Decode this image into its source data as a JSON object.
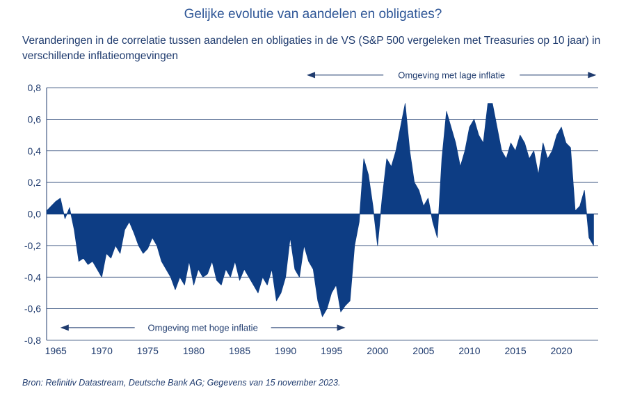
{
  "chart_data": {
    "type": "area",
    "title": "Gelijke evolutie van aandelen en obligaties?",
    "subtitle": "Veranderingen in de correlatie tussen aandelen en obligaties in de VS (S&P 500 vergeleken met Treasuries op 10 jaar) in verschillende inflatieomgevingen",
    "source": "Bron: Refinitiv Datastream, Deutsche Bank AG; Gegevens van 15 november 2023.",
    "xlim": [
      1964,
      2024
    ],
    "ylim": [
      -0.8,
      0.8
    ],
    "x_ticks": [
      1965,
      1970,
      1975,
      1980,
      1985,
      1990,
      1995,
      2000,
      2005,
      2010,
      2015,
      2020
    ],
    "y_ticks": [
      "0,8",
      "0,6",
      "0,4",
      "0,2",
      "0,0",
      "-0,2",
      "-0,4",
      "-0,6",
      "-0,8"
    ],
    "y_tick_values": [
      0.8,
      0.6,
      0.4,
      0.2,
      0.0,
      -0.2,
      -0.4,
      -0.6,
      -0.8
    ],
    "grid": true,
    "fill_color": "#0d3d84",
    "annotations": [
      {
        "text": "Omgeving met hoge inflatie",
        "x_from": 1965.5,
        "x_to": 1996.5,
        "y": -0.72
      },
      {
        "text": "Omgeving met lage inflatie",
        "x_from": 1992.3,
        "x_to": 2023.8,
        "y": 0.88
      }
    ],
    "series": [
      {
        "x": [
          1964.0,
          1964.5,
          1965.0,
          1965.5,
          1966.0,
          1966.5,
          1967.0,
          1967.5,
          1968.0,
          1968.5,
          1969.0,
          1969.5,
          1970.0,
          1970.5,
          1971.0,
          1971.5,
          1972.0,
          1972.5,
          1973.0,
          1973.5,
          1974.0,
          1974.5,
          1975.0,
          1975.5,
          1976.0,
          1976.5,
          1977.0,
          1977.5,
          1978.0,
          1978.5,
          1979.0,
          1979.5,
          1980.0,
          1980.5,
          1981.0,
          1981.5,
          1982.0,
          1982.5,
          1983.0,
          1983.5,
          1984.0,
          1984.5,
          1985.0,
          1985.5,
          1986.0,
          1986.5,
          1987.0,
          1987.5,
          1988.0,
          1988.5,
          1989.0,
          1989.5,
          1990.0,
          1990.5,
          1991.0,
          1991.5,
          1992.0,
          1992.5,
          1993.0,
          1993.5,
          1994.0,
          1994.5,
          1995.0,
          1995.5,
          1996.0,
          1996.5,
          1997.0,
          1997.5,
          1998.0,
          1998.5,
          1999.0,
          1999.5,
          2000.0,
          2000.5,
          2001.0,
          2001.5,
          2002.0,
          2002.5,
          2003.0,
          2003.5,
          2004.0,
          2004.5,
          2005.0,
          2005.5,
          2006.0,
          2006.5,
          2007.0,
          2007.5,
          2008.0,
          2008.5,
          2009.0,
          2009.5,
          2010.0,
          2010.5,
          2011.0,
          2011.5,
          2012.0,
          2012.5,
          2013.0,
          2013.5,
          2014.0,
          2014.5,
          2015.0,
          2015.5,
          2016.0,
          2016.5,
          2017.0,
          2017.5,
          2018.0,
          2018.5,
          2019.0,
          2019.5,
          2020.0,
          2020.5,
          2021.0,
          2021.5,
          2022.0,
          2022.5,
          2023.0,
          2023.5
        ],
        "values": [
          0.02,
          0.05,
          0.08,
          0.1,
          -0.03,
          0.04,
          -0.1,
          -0.3,
          -0.28,
          -0.32,
          -0.3,
          -0.35,
          -0.4,
          -0.25,
          -0.28,
          -0.2,
          -0.25,
          -0.1,
          -0.05,
          -0.12,
          -0.2,
          -0.25,
          -0.22,
          -0.15,
          -0.2,
          -0.3,
          -0.35,
          -0.4,
          -0.48,
          -0.4,
          -0.45,
          -0.3,
          -0.45,
          -0.35,
          -0.4,
          -0.38,
          -0.3,
          -0.42,
          -0.45,
          -0.35,
          -0.4,
          -0.3,
          -0.42,
          -0.35,
          -0.4,
          -0.45,
          -0.5,
          -0.4,
          -0.45,
          -0.35,
          -0.55,
          -0.5,
          -0.4,
          -0.15,
          -0.35,
          -0.4,
          -0.2,
          -0.3,
          -0.35,
          -0.55,
          -0.65,
          -0.6,
          -0.5,
          -0.45,
          -0.62,
          -0.58,
          -0.55,
          -0.2,
          -0.05,
          0.35,
          0.25,
          0.05,
          -0.2,
          0.1,
          0.35,
          0.3,
          0.4,
          0.55,
          0.7,
          0.4,
          0.2,
          0.15,
          0.05,
          0.1,
          -0.05,
          -0.15,
          0.35,
          0.65,
          0.55,
          0.45,
          0.3,
          0.4,
          0.55,
          0.6,
          0.5,
          0.45,
          0.7,
          0.7,
          0.55,
          0.4,
          0.35,
          0.45,
          0.4,
          0.5,
          0.45,
          0.35,
          0.4,
          0.25,
          0.45,
          0.35,
          0.4,
          0.5,
          0.55,
          0.45,
          0.42,
          0.02,
          0.05,
          0.15,
          -0.15,
          -0.2
        ]
      }
    ]
  }
}
